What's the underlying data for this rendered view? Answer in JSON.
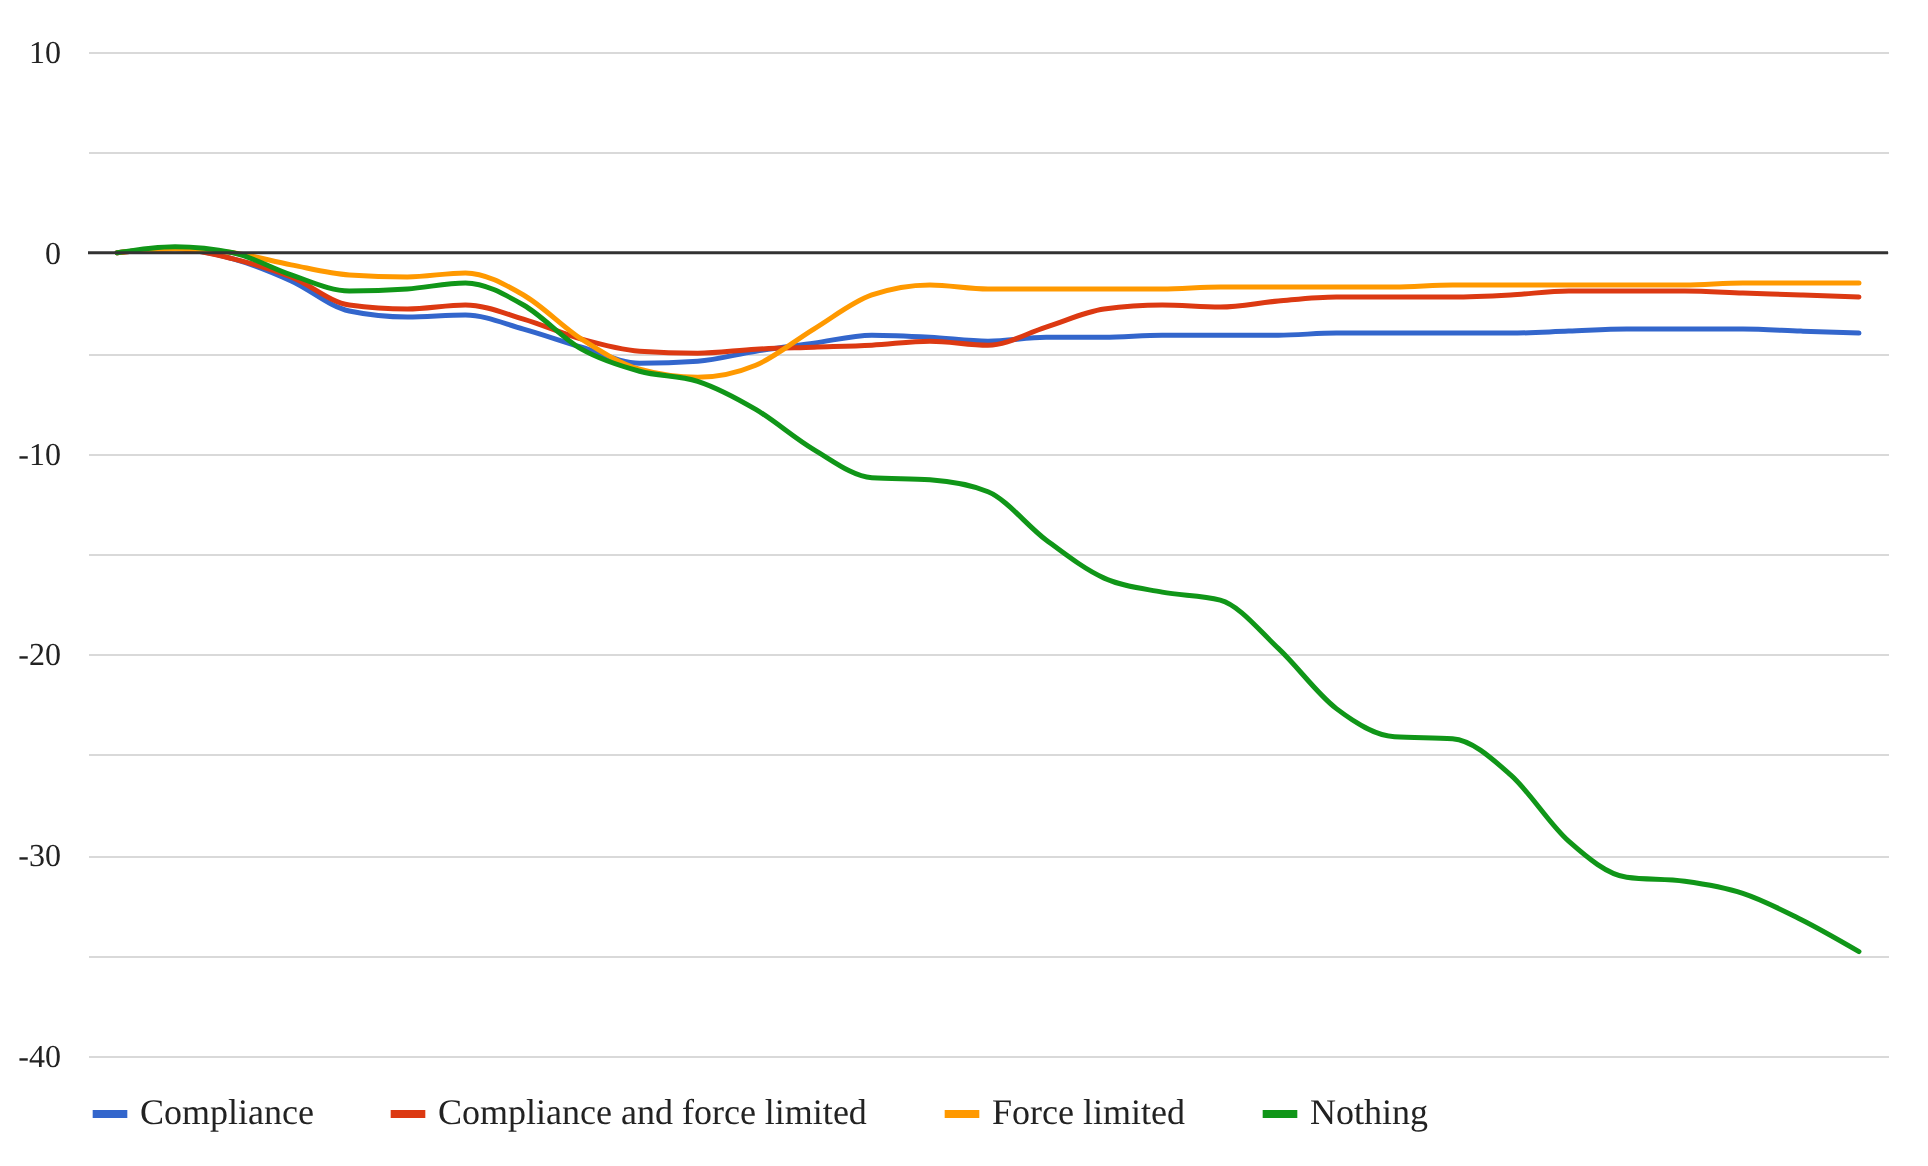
{
  "chart_data": {
    "type": "line",
    "categories": [
      null,
      null,
      null,
      null,
      null,
      null,
      null,
      null,
      null,
      null,
      null,
      null,
      null,
      null,
      null,
      null,
      null,
      null,
      null,
      null,
      null,
      null,
      null,
      null,
      null,
      null,
      null,
      null,
      null,
      null,
      null
    ],
    "series": [
      {
        "name": "Compliance",
        "color": "#3366cc",
        "values": [
          0,
          0.2,
          -0.3,
          -1.4,
          -2.9,
          -3.2,
          -3.1,
          -3.8,
          -4.7,
          -5.5,
          -5.4,
          -4.9,
          -4.5,
          -4.1,
          -4.2,
          -4.4,
          -4.2,
          -4.2,
          -4.1,
          -4.1,
          -4.1,
          -4.0,
          -4.0,
          -4.0,
          -4.0,
          -3.9,
          -3.8,
          -3.8,
          -3.8,
          -3.9,
          -4.0
        ]
      },
      {
        "name": "Compliance and force limited",
        "color": "#dc3912",
        "values": [
          0,
          0.2,
          -0.3,
          -1.2,
          -2.6,
          -2.8,
          -2.6,
          -3.3,
          -4.3,
          -4.9,
          -5.0,
          -4.8,
          -4.7,
          -4.6,
          -4.4,
          -4.6,
          -3.7,
          -2.8,
          -2.6,
          -2.7,
          -2.4,
          -2.2,
          -2.2,
          -2.2,
          -2.1,
          -1.9,
          -1.9,
          -1.9,
          -2.0,
          -2.1,
          -2.2
        ]
      },
      {
        "name": "Force limited",
        "color": "#ff9900",
        "values": [
          0,
          0.2,
          0,
          -0.6,
          -1.1,
          -1.2,
          -1.0,
          -2.1,
          -4.3,
          -5.8,
          -6.2,
          -5.6,
          -3.8,
          -2.1,
          -1.6,
          -1.8,
          -1.8,
          -1.8,
          -1.8,
          -1.7,
          -1.7,
          -1.7,
          -1.7,
          -1.6,
          -1.6,
          -1.6,
          -1.6,
          -1.6,
          -1.5,
          -1.5,
          -1.5
        ]
      },
      {
        "name": "Nothing",
        "color": "#109618",
        "values": [
          0,
          0.3,
          0,
          -1.1,
          -1.9,
          -1.8,
          -1.5,
          -2.6,
          -4.8,
          -5.9,
          -6.4,
          -7.8,
          -9.8,
          -11.2,
          -11.3,
          -11.9,
          -14.3,
          -16.2,
          -16.9,
          -17.3,
          -19.7,
          -22.7,
          -24.1,
          -24.2,
          -26.0,
          -29.3,
          -31.1,
          -31.3,
          -31.9,
          -33.2,
          -34.8
        ]
      }
    ],
    "ylim": [
      -40,
      10
    ],
    "yticks": [
      -40,
      {
        "value": -35,
        "label": null
      },
      -30,
      {
        "value": -25,
        "label": null
      },
      -20,
      {
        "value": -15,
        "label": null
      },
      -10,
      {
        "value": -5,
        "label": null
      },
      0,
      {
        "value": 5,
        "label": null
      },
      10
    ],
    "ref_lines": [
      {
        "axis": "y",
        "value": 0,
        "color": "#333333"
      }
    ],
    "grid": "y",
    "legend": "bottom",
    "line_style": "solid"
  }
}
